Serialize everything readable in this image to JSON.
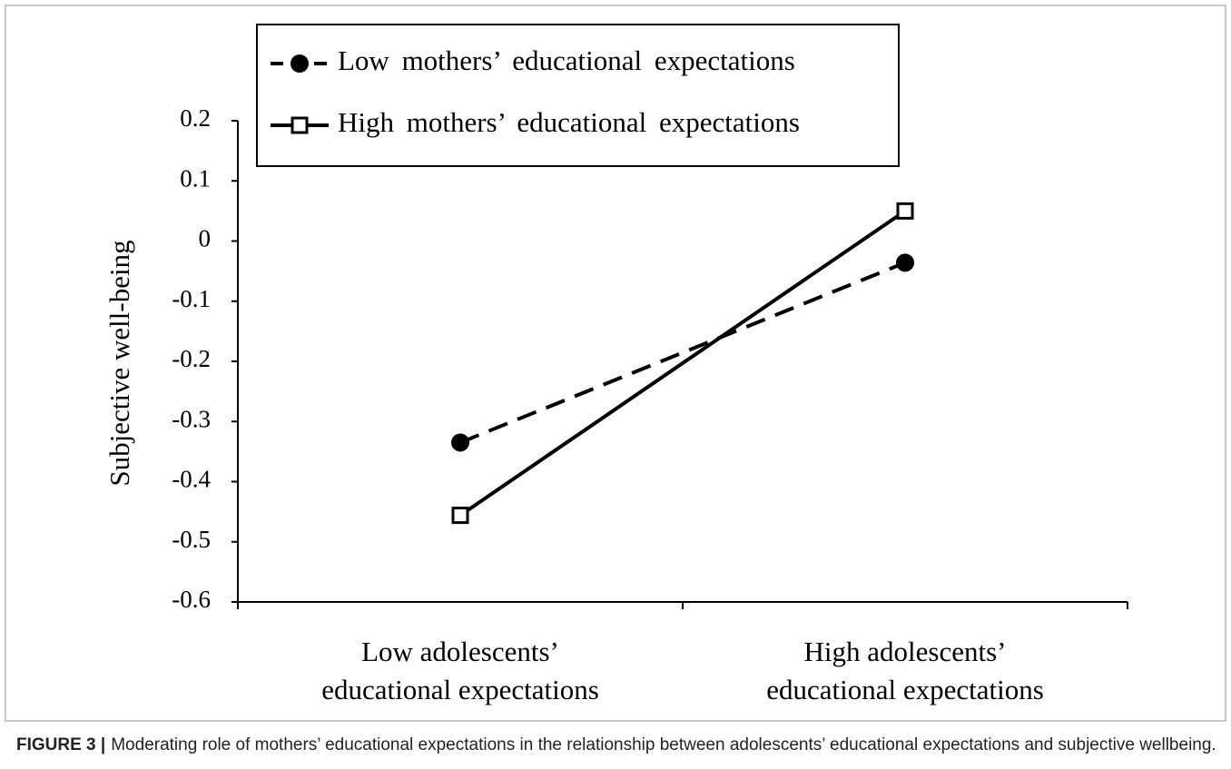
{
  "chart_data": {
    "type": "line",
    "y_label": "Subjective well-being",
    "categories": [
      "Low adolescents’\neducational expectations",
      "High adolescents’\neducational expectations"
    ],
    "series": [
      {
        "name": "Low mothers’ educational expectations",
        "color": "#000000",
        "line_style": "dashed",
        "marker": "circle",
        "values": [
          -0.335,
          -0.036
        ]
      },
      {
        "name": "High mothers’ educational expectations",
        "color": "#000000",
        "line_style": "solid",
        "marker": "square",
        "values": [
          -0.456,
          0.05
        ]
      }
    ],
    "ylim": [
      -0.6,
      0.2
    ],
    "yticks": [
      0.2,
      0.1,
      0,
      -0.1,
      -0.2,
      -0.3,
      -0.4,
      -0.5,
      -0.6
    ],
    "legend": "top",
    "caption_label": "FIGURE 3 |",
    "caption": "Moderating role of mothers’ educational expectations in the relationship between adolescents’ educational expectations and subjective wellbeing."
  }
}
